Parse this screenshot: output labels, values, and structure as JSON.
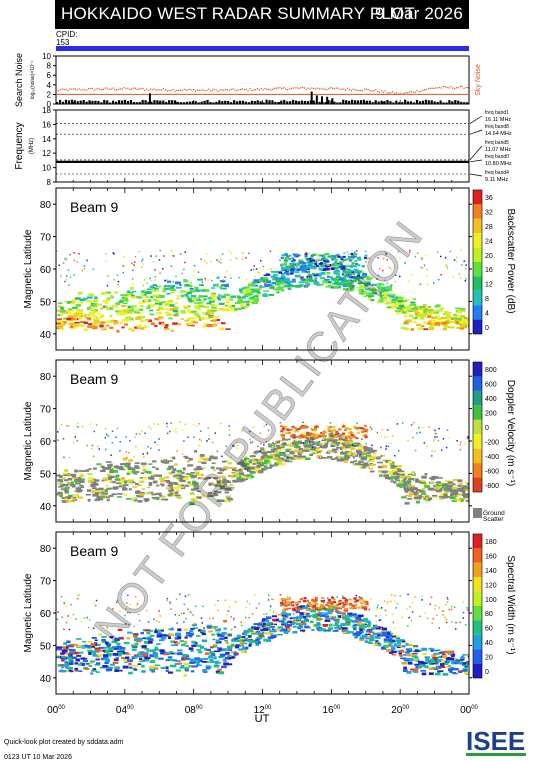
{
  "header": {
    "title": "HOKKAIDO WEST RADAR SUMMARY PLOT",
    "date": "9 Mar 2026",
    "cpid_label": "CPID:",
    "cpid_value": "153"
  },
  "colors": {
    "cpid_bar": "#2a2ae8",
    "noise_dots": "#e05020",
    "sky_noise": "#e05020",
    "ground_scatter": "#808080"
  },
  "noise_panel": {
    "ylabel": "Search Noise",
    "sublabel": "log₁₀(noise)×10⁻¹",
    "ticks": [
      "10",
      "8",
      "6",
      "4",
      "2",
      "0"
    ],
    "right_label": "Sky Noise",
    "chart_data": {
      "type": "scatter",
      "ylim": [
        0,
        10
      ],
      "series": [
        {
          "name": "Sky Noise",
          "x": [
            0,
            2,
            4,
            6,
            8,
            10,
            12,
            14,
            16,
            18,
            20,
            22,
            24
          ],
          "values": [
            3.0,
            3.2,
            3.3,
            3.1,
            3.0,
            3.0,
            3.2,
            3.4,
            3.3,
            3.1,
            2.2,
            3.5,
            3.6
          ]
        }
      ]
    }
  },
  "freq_panel": {
    "ylabel": "Frequency",
    "unit": "(MHz)",
    "ticks": [
      "18",
      "16",
      "14",
      "12",
      "10",
      "8"
    ],
    "bands": [
      {
        "label": "freq band1",
        "value": "16.11 MHz"
      },
      {
        "label": "freq band8",
        "value": "14.64 MHz"
      },
      {
        "label": "freq band5",
        "value": "11.07 MHz"
      },
      {
        "label": "freq band0",
        "value": "10.80 MHz"
      },
      {
        "label": "freq band4",
        "value": "9.11 MHz"
      }
    ],
    "chart_data": {
      "type": "line",
      "ylim": [
        8,
        18
      ],
      "series": [
        {
          "x": [
            0,
            24
          ],
          "values": [
            10.8,
            10.8
          ]
        }
      ]
    }
  },
  "panels": [
    {
      "beam": "Beam  9",
      "ylabel": "Magnetic Latitude",
      "colorbar_title": "Backscatter Power (dB)",
      "colorbar_ticks": [
        "36",
        "32",
        "28",
        "24",
        "20",
        "16",
        "12",
        "8",
        "4",
        "0"
      ],
      "colorbar_colors": [
        "#e02020",
        "#f08020",
        "#f0c020",
        "#f0f020",
        "#c0f020",
        "#60e040",
        "#20c060",
        "#20c0c0",
        "#2080f0",
        "#2020c0"
      ],
      "ticks": [
        "80",
        "70",
        "60",
        "50",
        "40"
      ]
    },
    {
      "beam": "Beam  9",
      "ylabel": "Magnetic Latitude",
      "colorbar_title": "Doppler Velocity (m s⁻¹)",
      "colorbar_ticks": [
        "800",
        "600",
        "400",
        "200",
        "0",
        "-200",
        "-400",
        "-600",
        "-800"
      ],
      "colorbar_colors": [
        "#2020c0",
        "#2060e0",
        "#20a080",
        "#40c040",
        "#c0e040",
        "#f0f020",
        "#f0c020",
        "#f08020",
        "#e04020"
      ],
      "ground_label": "Ground",
      "ground_label2": "Scatter",
      "ticks": [
        "80",
        "70",
        "60",
        "50",
        "40"
      ]
    },
    {
      "beam": "Beam  9",
      "ylabel": "Magnetic Latitude",
      "colorbar_title": "Spectral Width (m s⁻¹)",
      "colorbar_ticks": [
        "180",
        "160",
        "140",
        "120",
        "100",
        "80",
        "60",
        "40",
        "20",
        "0"
      ],
      "colorbar_colors": [
        "#e02020",
        "#f06020",
        "#f0a020",
        "#f0e020",
        "#c0f020",
        "#60e040",
        "#20c080",
        "#20a0e0",
        "#2060f0",
        "#2020c0"
      ],
      "ticks": [
        "80",
        "70",
        "60",
        "50",
        "40"
      ]
    }
  ],
  "xaxis": {
    "ticks": [
      {
        "h": "00",
        "m": "00"
      },
      {
        "h": "04",
        "m": "00"
      },
      {
        "h": "08",
        "m": "00"
      },
      {
        "h": "12",
        "m": "00"
      },
      {
        "h": "16",
        "m": "00"
      },
      {
        "h": "20",
        "m": "00"
      },
      {
        "h": "00",
        "m": "00"
      }
    ],
    "label": "UT"
  },
  "footer": {
    "credit": "Quick-look plot created by sddata.adm",
    "timestamp": "0123 UT 10 Mar 2026",
    "logo": "ISEE"
  },
  "watermark": "NOT FOR PUBLICATION"
}
